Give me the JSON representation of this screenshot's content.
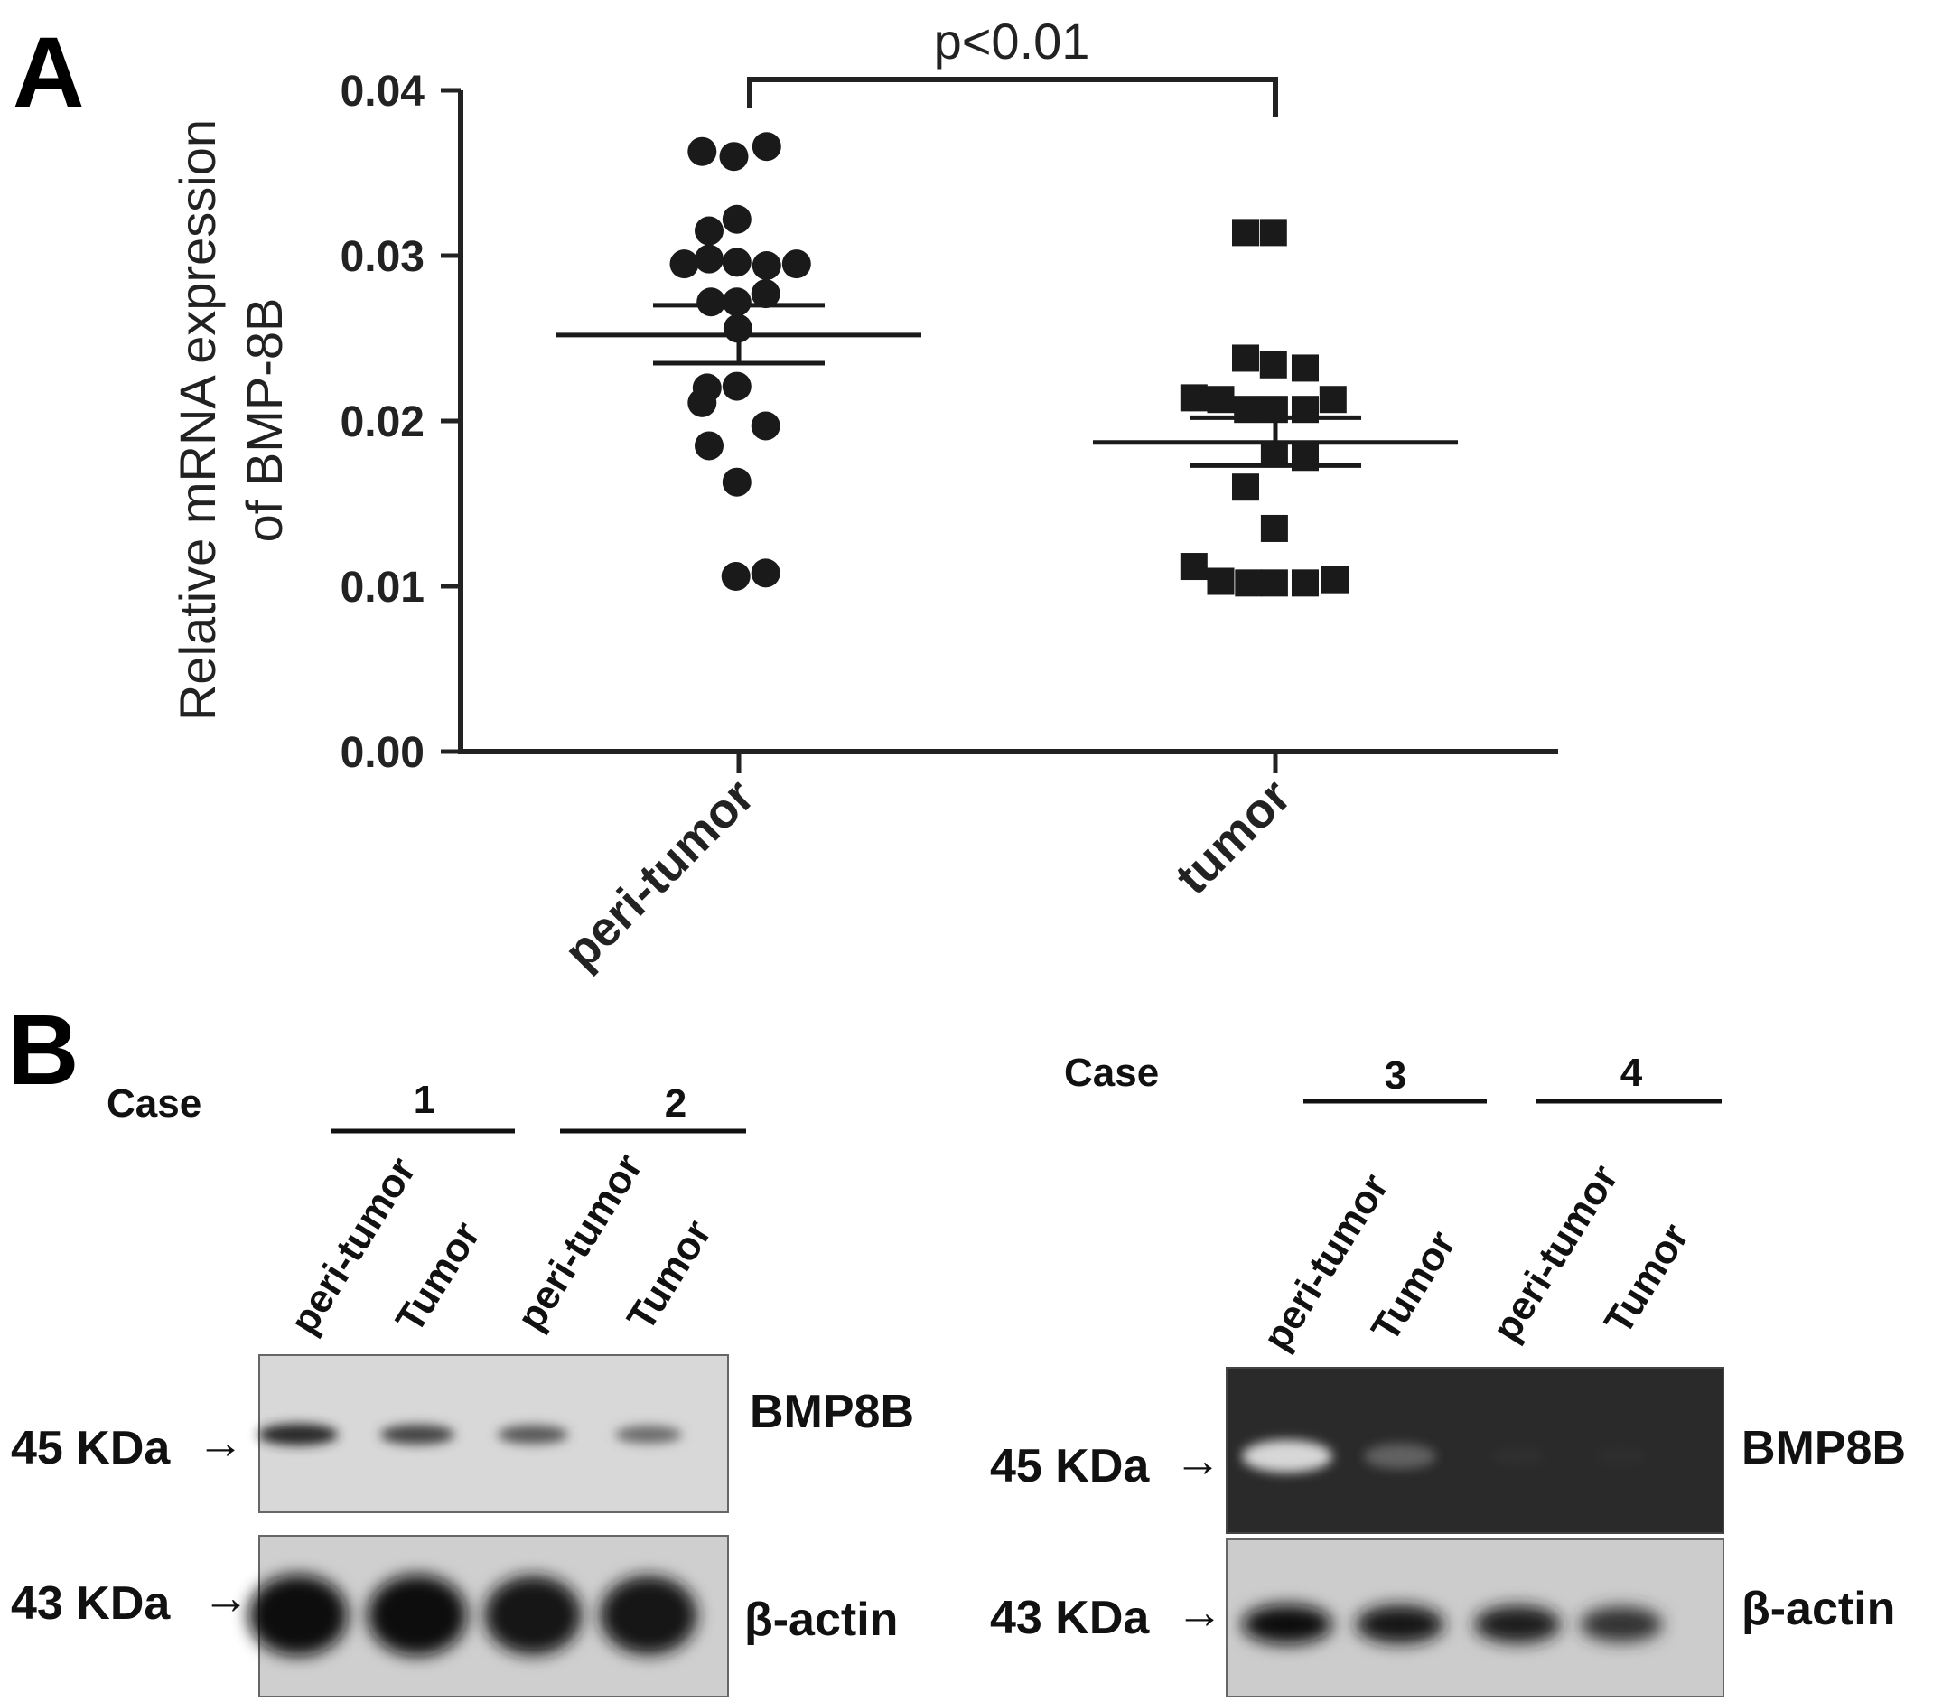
{
  "panel_a": {
    "letter": "A",
    "p_value": "p<0.01"
  },
  "panel_b": {
    "letter": "B",
    "case_label": "Case",
    "blots": [
      {
        "cases": [
          "1",
          "2"
        ],
        "lanes": [
          "peri-tumor",
          "Tumor",
          "peri-tumor",
          "Tumor"
        ],
        "rows": [
          {
            "marker": "45 KDa",
            "protein": "BMP8B",
            "band_intensity": [
              0.85,
              0.7,
              0.6,
              0.5
            ]
          },
          {
            "marker": "43 KDa",
            "protein": "β-actin",
            "band_intensity": [
              1.0,
              1.0,
              0.95,
              0.95
            ]
          }
        ]
      },
      {
        "cases": [
          "3",
          "4"
        ],
        "lanes": [
          "peri-tumor",
          "Tumor",
          "peri-tumor",
          "Tumor"
        ],
        "rows": [
          {
            "marker": "45 KDa",
            "protein": "BMP8B",
            "band_intensity": [
              1.0,
              0.55,
              0.15,
              0.1
            ]
          },
          {
            "marker": "43 KDa",
            "protein": "β-actin",
            "band_intensity": [
              1.0,
              0.95,
              0.9,
              0.8
            ]
          }
        ]
      }
    ]
  },
  "chart_data": {
    "type": "scatter",
    "title": "",
    "xlabel": "",
    "ylabel_line1": "Relative mRNA expression",
    "ylabel_line2": "of BMP-8B",
    "ylim": [
      0,
      0.04
    ],
    "yticks": [
      "0.00",
      "0.01",
      "0.02",
      "0.03",
      "0.04"
    ],
    "categories": [
      "peri-tumor",
      "tumor"
    ],
    "grid": false,
    "series": [
      {
        "category": "peri-tumor",
        "marker": "circle",
        "mean": 0.0252,
        "sem_low": 0.0235,
        "sem_high": 0.027,
        "points": [
          {
            "v": 0.0363,
            "off": -0.37
          },
          {
            "v": 0.036,
            "off": -0.05
          },
          {
            "v": 0.0366,
            "off": 0.28
          },
          {
            "v": 0.0315,
            "off": -0.3
          },
          {
            "v": 0.0322,
            "off": -0.02
          },
          {
            "v": 0.0295,
            "off": -0.55
          },
          {
            "v": 0.0298,
            "off": -0.3
          },
          {
            "v": 0.0296,
            "off": -0.02
          },
          {
            "v": 0.0294,
            "off": 0.28
          },
          {
            "v": 0.0295,
            "off": 0.58
          },
          {
            "v": 0.0272,
            "off": -0.28
          },
          {
            "v": 0.0272,
            "off": -0.02
          },
          {
            "v": 0.0277,
            "off": 0.27
          },
          {
            "v": 0.0256,
            "off": -0.01
          },
          {
            "v": 0.022,
            "off": -0.32
          },
          {
            "v": 0.0221,
            "off": -0.02
          },
          {
            "v": 0.0211,
            "off": -0.37
          },
          {
            "v": 0.0197,
            "off": 0.27
          },
          {
            "v": 0.0185,
            "off": -0.3
          },
          {
            "v": 0.0163,
            "off": -0.02
          },
          {
            "v": 0.0106,
            "off": -0.03
          },
          {
            "v": 0.0108,
            "off": 0.27
          }
        ]
      },
      {
        "category": "tumor",
        "marker": "square",
        "mean": 0.0187,
        "sem_low": 0.0173,
        "sem_high": 0.0202,
        "points": [
          {
            "v": 0.0314,
            "off": -0.3
          },
          {
            "v": 0.0314,
            "off": -0.02
          },
          {
            "v": 0.0238,
            "off": -0.3
          },
          {
            "v": 0.0234,
            "off": -0.02
          },
          {
            "v": 0.0232,
            "off": 0.3
          },
          {
            "v": 0.0214,
            "off": -0.82
          },
          {
            "v": 0.0213,
            "off": -0.55
          },
          {
            "v": 0.0213,
            "off": 0.58
          },
          {
            "v": 0.0207,
            "off": -0.28
          },
          {
            "v": 0.0207,
            "off": -0.01
          },
          {
            "v": 0.0207,
            "off": 0.3
          },
          {
            "v": 0.018,
            "off": -0.01
          },
          {
            "v": 0.0178,
            "off": 0.3
          },
          {
            "v": 0.016,
            "off": -0.3
          },
          {
            "v": 0.0135,
            "off": -0.01
          },
          {
            "v": 0.0112,
            "off": -0.82
          },
          {
            "v": 0.0103,
            "off": -0.55
          },
          {
            "v": 0.0102,
            "off": -0.27
          },
          {
            "v": 0.0102,
            "off": -0.01
          },
          {
            "v": 0.0102,
            "off": 0.3
          },
          {
            "v": 0.0104,
            "off": 0.6
          }
        ]
      }
    ],
    "significance": {
      "between": [
        "peri-tumor",
        "tumor"
      ],
      "label": "p<0.01"
    }
  }
}
